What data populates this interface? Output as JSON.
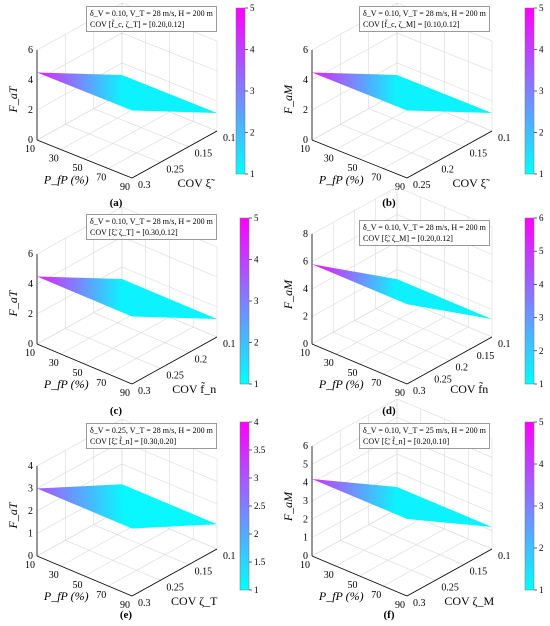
{
  "chart_data": [
    {
      "type": "surface",
      "caption": "(a)",
      "zlabel": "F_aT",
      "xlabel": "P_fP (%)",
      "ylabel": "COV ξ̃",
      "legend_lines": [
        "δ_V = 0.10, V_T = 28 m/s, H = 200 m",
        "COV [f̃_c, ζ_T] = [0.20,0.12]"
      ],
      "x_ticks": [
        "10",
        "30",
        "50",
        "70",
        "90"
      ],
      "y_ticks": [
        "0.3",
        "0.25",
        "0.15",
        "0.1"
      ],
      "z_ticks": [
        "0",
        "2",
        "4",
        "6"
      ],
      "zlim": [
        0,
        6
      ],
      "colorbar_ticks": [
        "1",
        "2",
        "3",
        "4",
        "5"
      ],
      "colorbar_range": [
        1,
        5
      ],
      "surface": {
        "x": [
          10,
          90
        ],
        "y": [
          0.3,
          0.1
        ],
        "z": [
          [
            4.5,
            4.5
          ],
          [
            1.2,
            1.2
          ]
        ]
      }
    },
    {
      "type": "surface",
      "caption": "(b)",
      "zlabel": "F_aM",
      "xlabel": "P_fP (%)",
      "ylabel": "COV ξ̃",
      "legend_lines": [
        "δ_V = 0.10, V_T = 28 m/s, H = 200 m",
        "COV [f̃_c, ζ_M] = [0.10,0.12]"
      ],
      "x_ticks": [
        "10",
        "30",
        "50",
        "70",
        "90"
      ],
      "y_ticks": [
        "0.25",
        "0.2",
        "0.15",
        "0.1"
      ],
      "z_ticks": [
        "0",
        "2",
        "4",
        "6"
      ],
      "zlim": [
        0,
        6
      ],
      "colorbar_ticks": [
        "1",
        "2",
        "3",
        "4",
        "5"
      ],
      "colorbar_range": [
        1,
        5
      ],
      "surface": {
        "x": [
          10,
          90
        ],
        "y": [
          0.25,
          0.1
        ],
        "z": [
          [
            4.5,
            4.5
          ],
          [
            1.2,
            1.2
          ]
        ]
      }
    },
    {
      "type": "surface",
      "caption": "(c)",
      "zlabel": "F_aT",
      "xlabel": "P_fP (%)",
      "ylabel": "COV f̃_n",
      "legend_lines": [
        "δ_V = 0.10, V_T = 28 m/s, H = 200 m",
        "COV [ξ̃, ζ_T] = [0.30,0.12]"
      ],
      "x_ticks": [
        "10",
        "30",
        "50",
        "70",
        "90"
      ],
      "y_ticks": [
        "0.3",
        "0.25",
        "0.2",
        "0.1"
      ],
      "z_ticks": [
        "0",
        "2",
        "4",
        "6"
      ],
      "zlim": [
        0,
        6
      ],
      "colorbar_ticks": [
        "1",
        "2",
        "3",
        "4",
        "5"
      ],
      "colorbar_range": [
        1,
        5
      ],
      "surface": {
        "x": [
          10,
          90
        ],
        "y": [
          0.3,
          0.1
        ],
        "z": [
          [
            4.5,
            4.5
          ],
          [
            1.2,
            1.2
          ]
        ]
      }
    },
    {
      "type": "surface",
      "caption": "(d)",
      "zlabel": "F_aM",
      "xlabel": "P_fP (%)",
      "ylabel": "COV f̃n",
      "legend_lines": [
        "δ_V = 0.10, V_T = 28 m/s, H = 200 m",
        "COV [ξ̃, ζ_M] = [0.20,0.12]"
      ],
      "x_ticks": [
        "10",
        "30",
        "50",
        "70",
        "90"
      ],
      "y_ticks": [
        "0.3",
        "0.25",
        "0.2",
        "0.15",
        "0.1"
      ],
      "z_ticks": [
        "0",
        "2",
        "4",
        "6",
        "8"
      ],
      "zlim": [
        0,
        8
      ],
      "colorbar_ticks": [
        "1",
        "2",
        "3",
        "4",
        "5",
        "6"
      ],
      "colorbar_range": [
        1,
        6
      ],
      "surface": {
        "x": [
          10,
          90
        ],
        "y": [
          0.3,
          0.1
        ],
        "z": [
          [
            5.8,
            5.8
          ],
          [
            1.3,
            1.3
          ]
        ]
      }
    },
    {
      "type": "surface",
      "caption": "(e)",
      "zlabel": "F_aT",
      "xlabel": "P_fP (%)",
      "ylabel": "COV ζ_T",
      "legend_lines": [
        "δ_V = 0.25, V_T = 28 m/s, H = 200 m",
        "COV [ξ̃, f̃_n] = [0.30,0.20]"
      ],
      "x_ticks": [
        "10",
        "30",
        "50",
        "70",
        "90"
      ],
      "y_ticks": [
        "0.3",
        "0.25",
        "0.15",
        "0.1"
      ],
      "z_ticks": [
        "0",
        "1",
        "2",
        "3",
        "4"
      ],
      "zlim": [
        0,
        4
      ],
      "colorbar_ticks": [
        "1",
        "1.5",
        "2",
        "2.5",
        "3",
        "3.5",
        "4"
      ],
      "colorbar_range": [
        1,
        4
      ],
      "surface": {
        "x": [
          10,
          90
        ],
        "y": [
          0.3,
          0.1
        ],
        "z": [
          [
            3.0,
            3.0
          ],
          [
            1.1,
            1.1
          ]
        ]
      }
    },
    {
      "type": "surface",
      "caption": "(f)",
      "zlabel": "F_aM",
      "xlabel": "P_fP (%)",
      "ylabel": "COV ζ_M",
      "legend_lines": [
        "δ_V = 0.10, V_T = 25 m/s, H = 200 m",
        "COV [ξ̃, f̃_n] = [0.20,0.10]"
      ],
      "x_ticks": [
        "10",
        "30",
        "50",
        "70",
        "90"
      ],
      "y_ticks": [
        "0.3",
        "0.25",
        "0.15",
        "0.1"
      ],
      "z_ticks": [
        "0",
        "1",
        "2",
        "3",
        "4",
        "5",
        "6"
      ],
      "zlim": [
        0,
        6
      ],
      "colorbar_ticks": [
        "1",
        "2",
        "3",
        "4",
        "5"
      ],
      "colorbar_range": [
        1,
        5
      ],
      "surface": {
        "x": [
          10,
          90
        ],
        "y": [
          0.3,
          0.1
        ],
        "z": [
          [
            4.2,
            4.2
          ],
          [
            1.2,
            1.2
          ]
        ]
      }
    }
  ],
  "colors": {
    "low": "#00ffff",
    "high": "#ff00ff",
    "grid": "#d9d9d9",
    "axis": "#000000"
  }
}
